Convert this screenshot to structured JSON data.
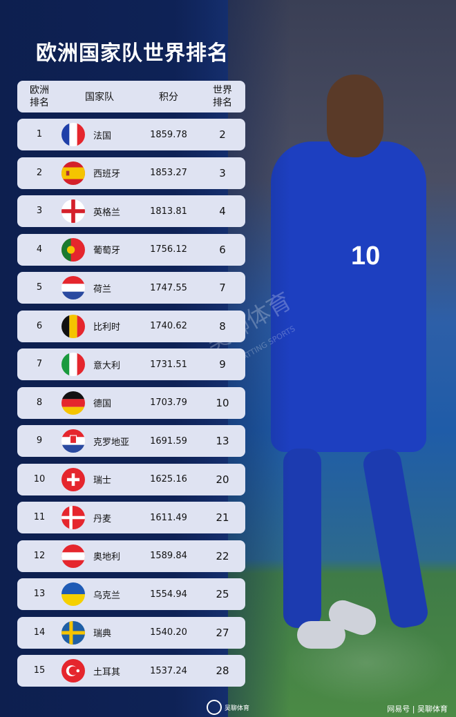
{
  "title": "欧洲国家队世界排名",
  "headers": {
    "euro_rank": "欧洲\n排名",
    "team": "国家队",
    "points": "积分",
    "world_rank": "世界\n排名"
  },
  "rows": [
    {
      "euro_rank": "1",
      "team": "法国",
      "points": "1859.78",
      "world_rank": "2",
      "flag": "france"
    },
    {
      "euro_rank": "2",
      "team": "西班牙",
      "points": "1853.27",
      "world_rank": "3",
      "flag": "spain"
    },
    {
      "euro_rank": "3",
      "team": "英格兰",
      "points": "1813.81",
      "world_rank": "4",
      "flag": "england"
    },
    {
      "euro_rank": "4",
      "team": "葡萄牙",
      "points": "1756.12",
      "world_rank": "6",
      "flag": "portugal"
    },
    {
      "euro_rank": "5",
      "team": "荷兰",
      "points": "1747.55",
      "world_rank": "7",
      "flag": "netherlands"
    },
    {
      "euro_rank": "6",
      "team": "比利时",
      "points": "1740.62",
      "world_rank": "8",
      "flag": "belgium"
    },
    {
      "euro_rank": "7",
      "team": "意大利",
      "points": "1731.51",
      "world_rank": "9",
      "flag": "italy"
    },
    {
      "euro_rank": "8",
      "team": "德国",
      "points": "1703.79",
      "world_rank": "10",
      "flag": "germany"
    },
    {
      "euro_rank": "9",
      "team": "克罗地亚",
      "points": "1691.59",
      "world_rank": "13",
      "flag": "croatia"
    },
    {
      "euro_rank": "10",
      "team": "瑞士",
      "points": "1625.16",
      "world_rank": "20",
      "flag": "switzerland"
    },
    {
      "euro_rank": "11",
      "team": "丹麦",
      "points": "1611.49",
      "world_rank": "21",
      "flag": "denmark"
    },
    {
      "euro_rank": "12",
      "team": "奥地利",
      "points": "1589.84",
      "world_rank": "22",
      "flag": "austria"
    },
    {
      "euro_rank": "13",
      "team": "乌克兰",
      "points": "1554.94",
      "world_rank": "25",
      "flag": "ukraine"
    },
    {
      "euro_rank": "14",
      "team": "瑞典",
      "points": "1540.20",
      "world_rank": "27",
      "flag": "sweden"
    },
    {
      "euro_rank": "15",
      "team": "土耳其",
      "points": "1537.24",
      "world_rank": "28",
      "flag": "turkey"
    }
  ],
  "photo": {
    "jersey_number": "10"
  },
  "watermark": {
    "name": "吴聊体育",
    "sub": "WU CHATTING SPORTS"
  },
  "logo": {
    "name": "吴聊体育"
  },
  "footer": "网易号 | 吴聊体育"
}
